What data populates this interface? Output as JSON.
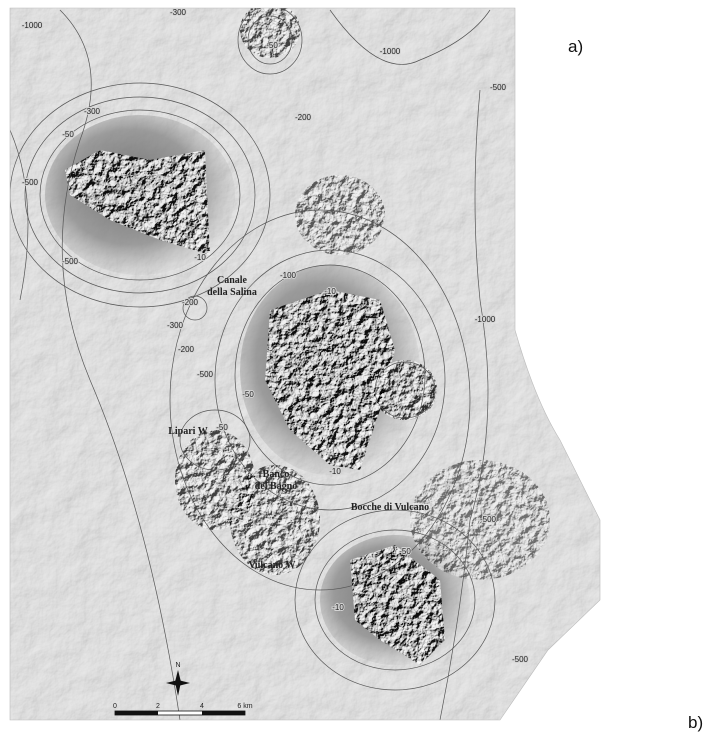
{
  "panel_labels": {
    "a": "a)",
    "b": "b)"
  },
  "places": [
    {
      "lines": [
        "Canale",
        "della Salina"
      ]
    },
    {
      "lines": [
        "Lipari W"
      ]
    },
    {
      "lines": [
        "Banco",
        "del Bagno"
      ]
    },
    {
      "lines": [
        "Bocche di Vulcano"
      ]
    },
    {
      "lines": [
        "Vulcano W"
      ]
    }
  ],
  "contour_labels": [
    "-1000",
    "-300",
    "-50",
    "-1000",
    "-500",
    "-300",
    "-50",
    "-200",
    "-500",
    "-500",
    "-10",
    "-100",
    "-10",
    "-200",
    "-300",
    "-200",
    "-500",
    "-1000",
    "-50",
    "-50",
    "-10",
    "-500",
    "-50",
    "-10",
    "-500"
  ],
  "north_arrow": {
    "label": "N"
  },
  "scale_bar": {
    "labels": [
      "0",
      "2",
      "4",
      "6 km"
    ]
  }
}
